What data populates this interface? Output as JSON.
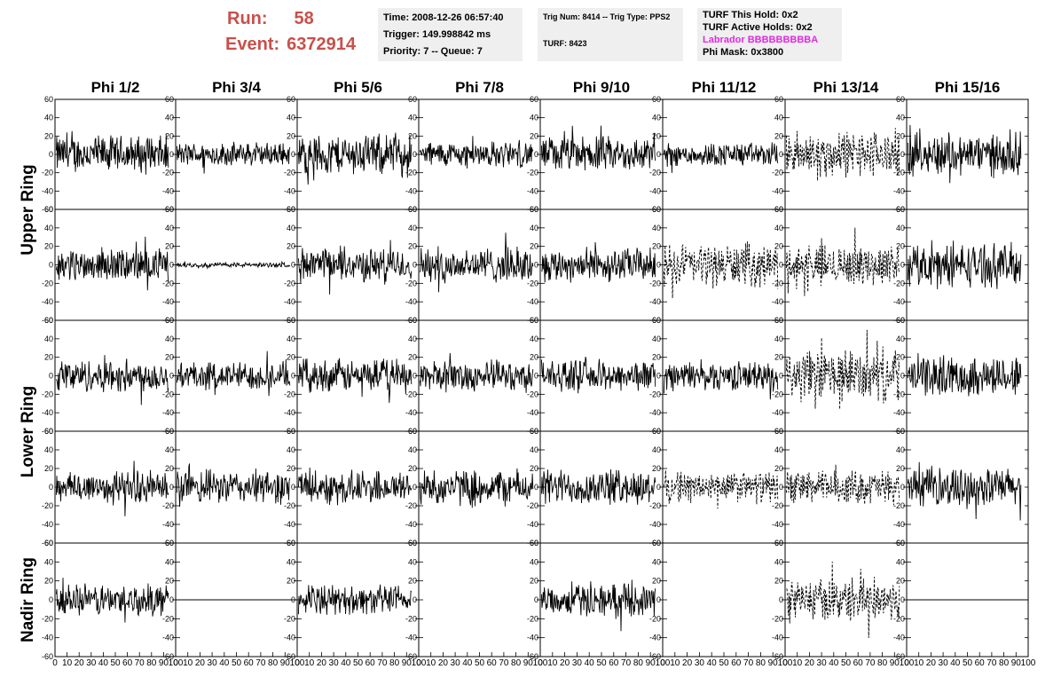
{
  "header": {
    "run_label": "Run:",
    "run_value": "58",
    "event_label": "Event:",
    "event_value": "6372914",
    "time": "Time: 2008-12-26 06:57:40",
    "trigger": "Trigger: 149.998842 ms",
    "priority": "Priority: 7 -- Queue: 7",
    "trig_num": "Trig Num: 8414 -- Trig Type: PPS2",
    "turf": "TURF: 8423",
    "turf_hold": "TURF This Hold: 0x2",
    "turf_active": "TURF Active Holds: 0x2",
    "labrador": "Labrador BBBBBBBBBA",
    "phi_mask": "Phi Mask: 0x3800",
    "labrador_color": "#e02ae0",
    "run_color": "#c8504a"
  },
  "chart_data": {
    "type": "line",
    "columns": [
      "Phi 1/2",
      "Phi 3/4",
      "Phi 5/6",
      "Phi 7/8",
      "Phi 9/10",
      "Phi 11/12",
      "Phi 13/14",
      "Phi 15/16"
    ],
    "ring_labels": [
      "Upper Ring",
      "Lower Ring",
      "Nadir Ring"
    ],
    "y_ticks": [
      -60,
      -40,
      -20,
      0,
      20,
      40,
      60
    ],
    "x_ticks": [
      0,
      10,
      20,
      30,
      40,
      50,
      60,
      70,
      80,
      90,
      100
    ],
    "xlim": [
      0,
      100
    ],
    "ylim": [
      -60,
      60
    ],
    "rows": [
      [
        {
          "amp": 16,
          "style": "solid"
        },
        {
          "amp": 10,
          "style": "solid"
        },
        {
          "amp": 17,
          "style": "solid"
        },
        {
          "amp": 11,
          "style": "solid"
        },
        {
          "amp": 15,
          "style": "solid"
        },
        {
          "amp": 10,
          "style": "solid"
        },
        {
          "amp": 20,
          "style": "dashed"
        },
        {
          "amp": 18,
          "style": "solid"
        }
      ],
      [
        {
          "amp": 14,
          "style": "solid"
        },
        {
          "amp": 2,
          "style": "solid"
        },
        {
          "amp": 14,
          "style": "solid"
        },
        {
          "amp": 15,
          "style": "solid"
        },
        {
          "amp": 14,
          "style": "solid"
        },
        {
          "amp": 18,
          "style": "dashed"
        },
        {
          "amp": 17,
          "style": "dashed"
        },
        {
          "amp": 18,
          "style": "solid"
        }
      ],
      [
        {
          "amp": 14,
          "style": "solid"
        },
        {
          "amp": 12,
          "style": "solid"
        },
        {
          "amp": 14,
          "style": "solid"
        },
        {
          "amp": 13,
          "style": "solid"
        },
        {
          "amp": 13,
          "style": "solid"
        },
        {
          "amp": 12,
          "style": "solid"
        },
        {
          "amp": 22,
          "style": "dashed"
        },
        {
          "amp": 17,
          "style": "solid"
        }
      ],
      [
        {
          "amp": 14,
          "style": "solid"
        },
        {
          "amp": 14,
          "style": "solid"
        },
        {
          "amp": 14,
          "style": "solid"
        },
        {
          "amp": 15,
          "style": "solid"
        },
        {
          "amp": 15,
          "style": "solid"
        },
        {
          "amp": 13,
          "style": "dashed"
        },
        {
          "amp": 14,
          "style": "dashed"
        },
        {
          "amp": 16,
          "style": "solid"
        }
      ],
      [
        {
          "amp": 13,
          "style": "solid"
        },
        {
          "amp": 0,
          "style": "flat"
        },
        {
          "amp": 12,
          "style": "solid"
        },
        {
          "amp": null,
          "style": "empty"
        },
        {
          "amp": 13,
          "style": "solid"
        },
        {
          "amp": null,
          "style": "empty"
        },
        {
          "amp": 18,
          "style": "dashed"
        },
        {
          "amp": 0,
          "style": "flat"
        }
      ]
    ]
  }
}
